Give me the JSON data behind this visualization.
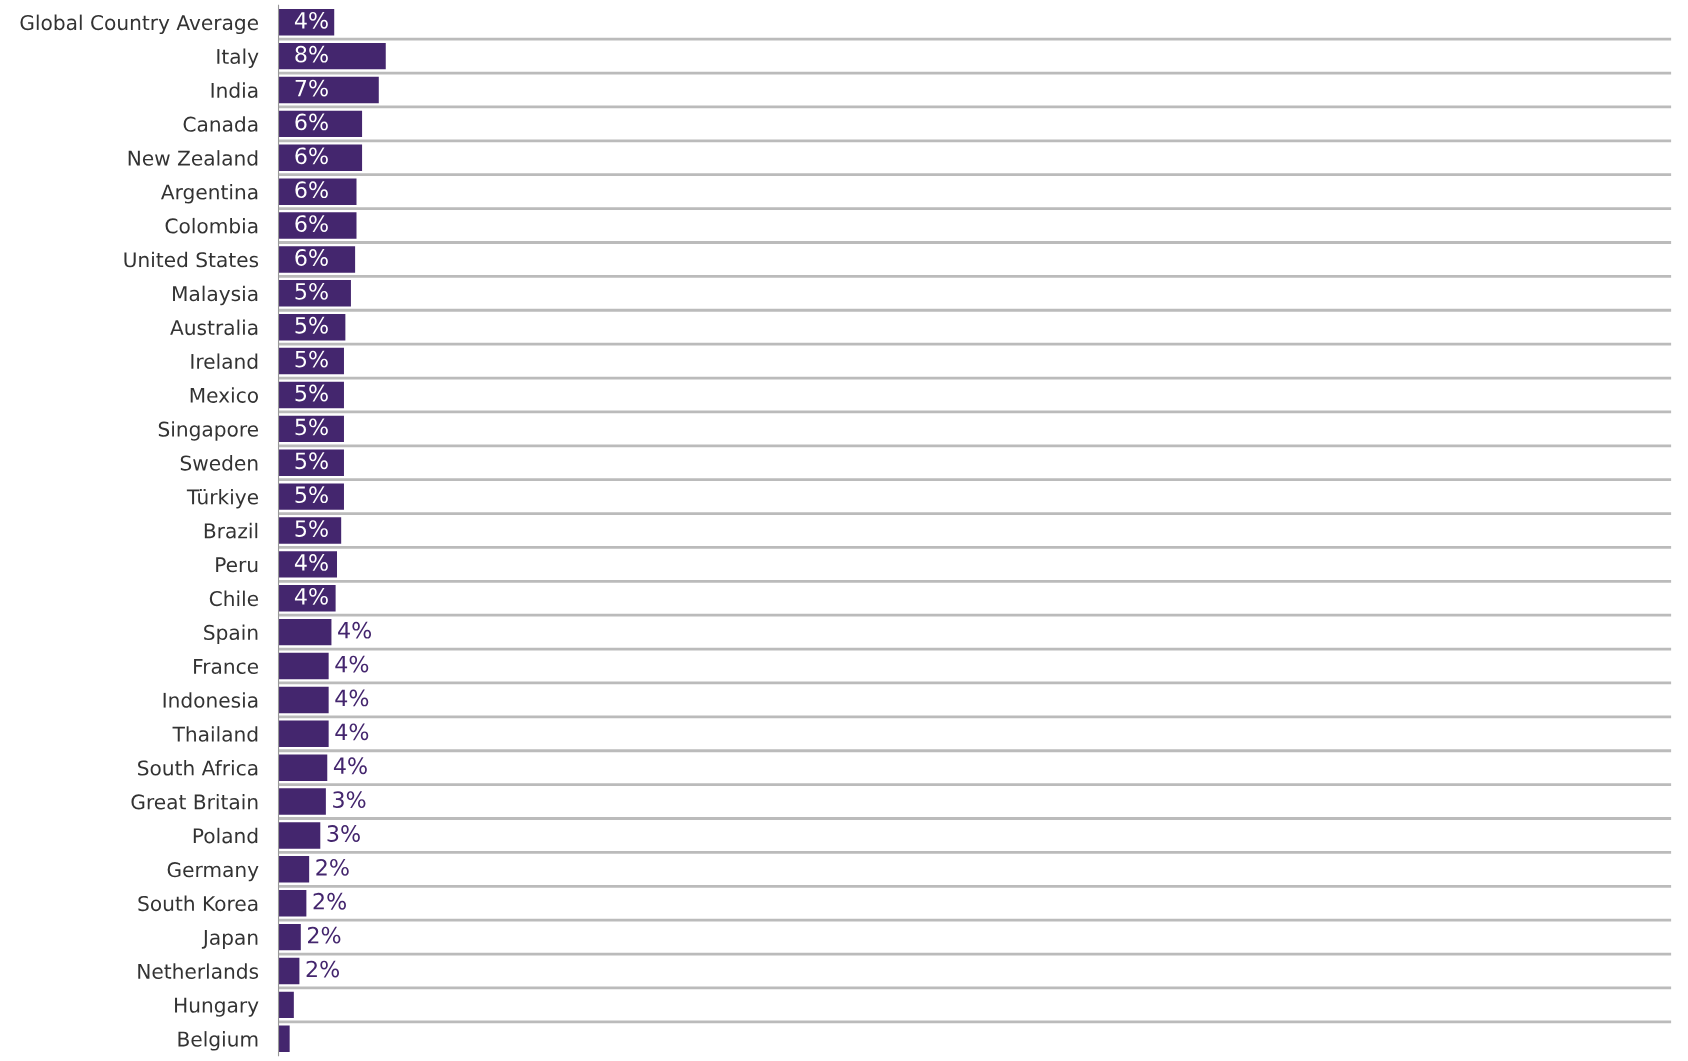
{
  "chart_data": {
    "type": "bar",
    "orientation": "horizontal",
    "categories": [
      "Global Country Average",
      "Italy",
      "India",
      "Canada",
      "New Zealand",
      "Argentina",
      "Colombia",
      "United States",
      "Malaysia",
      "Australia",
      "Ireland",
      "Mexico",
      "Singapore",
      "Sweden",
      "Türkiye",
      "Brazil",
      "Peru",
      "Chile",
      "Spain",
      "France",
      "Indonesia",
      "Thailand",
      "South Africa",
      "Great Britain",
      "Poland",
      "Germany",
      "South Korea",
      "Japan",
      "Netherlands",
      "Hungary",
      "Belgium"
    ],
    "values": [
      4.0,
      7.7,
      7.2,
      6.0,
      6.0,
      5.6,
      5.6,
      5.5,
      5.2,
      4.8,
      4.7,
      4.7,
      4.7,
      4.7,
      4.7,
      4.5,
      4.2,
      4.1,
      3.8,
      3.6,
      3.6,
      3.6,
      3.5,
      3.4,
      3.0,
      2.2,
      2.0,
      1.6,
      1.5,
      1.1,
      0.8
    ],
    "value_labels": [
      "4%",
      "8%",
      "7%",
      "6%",
      "6%",
      "6%",
      "6%",
      "6%",
      "5%",
      "5%",
      "5%",
      "5%",
      "5%",
      "5%",
      "5%",
      "5%",
      "4%",
      "4%",
      "4%",
      "4%",
      "4%",
      "4%",
      "4%",
      "3%",
      "3%",
      "2%",
      "2%",
      "2%",
      "2%",
      null,
      null
    ],
    "color": "#44266e",
    "xlim": [
      0,
      100
    ],
    "grid": "y",
    "tick_labels": "y"
  }
}
